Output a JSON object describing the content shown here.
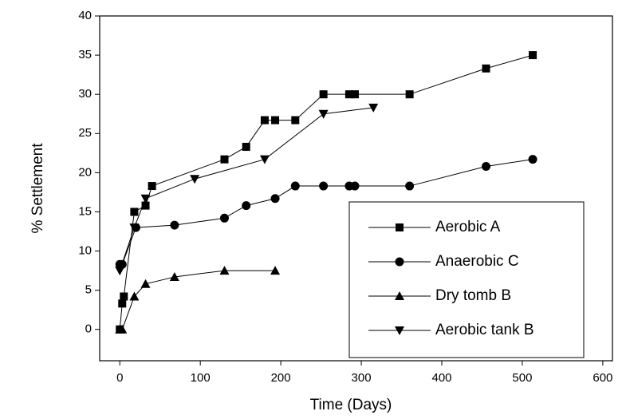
{
  "chart_data": {
    "type": "line",
    "x_label": "Time (Days)",
    "y_label": "% Settlement",
    "xlim": [
      -25,
      612
    ],
    "ylim": [
      -4,
      40
    ],
    "xticks": [
      0,
      100,
      200,
      300,
      400,
      500,
      600
    ],
    "yticks": [
      0,
      5,
      10,
      15,
      20,
      25,
      30,
      35,
      40
    ],
    "legend": "lower-right",
    "series": [
      {
        "name": "Aerobic A",
        "color": "#000000",
        "marker": "square",
        "x": [
          0,
          3,
          5,
          18,
          32,
          40,
          130,
          157,
          180,
          193,
          218,
          253,
          285,
          292,
          360,
          455,
          513
        ],
        "values": [
          0,
          3.3,
          4.2,
          15,
          15.8,
          18.3,
          21.7,
          23.3,
          26.7,
          26.7,
          26.7,
          30,
          30,
          30,
          30,
          33.3,
          35
        ]
      },
      {
        "name": "Anaerobic C",
        "color": "#000000",
        "marker": "circle",
        "x": [
          0,
          3,
          20,
          68,
          130,
          157,
          193,
          218,
          253,
          285,
          292,
          360,
          455,
          513
        ],
        "values": [
          8.3,
          8.3,
          13,
          13.3,
          14.2,
          15.8,
          16.7,
          18.3,
          18.3,
          18.3,
          18.3,
          18.3,
          20.8,
          21.7
        ]
      },
      {
        "name": "Dry tomb B",
        "color": "#000000",
        "marker": "triangle-up",
        "x": [
          0,
          3,
          18,
          32,
          68,
          130,
          193
        ],
        "values": [
          0,
          0,
          4.2,
          5.8,
          6.7,
          7.5,
          7.5
        ]
      },
      {
        "name": "Aerobic tank B",
        "color": "#000000",
        "marker": "triangle-down",
        "x": [
          0,
          18,
          32,
          93,
          180,
          253,
          315
        ],
        "values": [
          7.5,
          13,
          16.7,
          19.2,
          21.7,
          27.5,
          28.3
        ]
      }
    ]
  }
}
